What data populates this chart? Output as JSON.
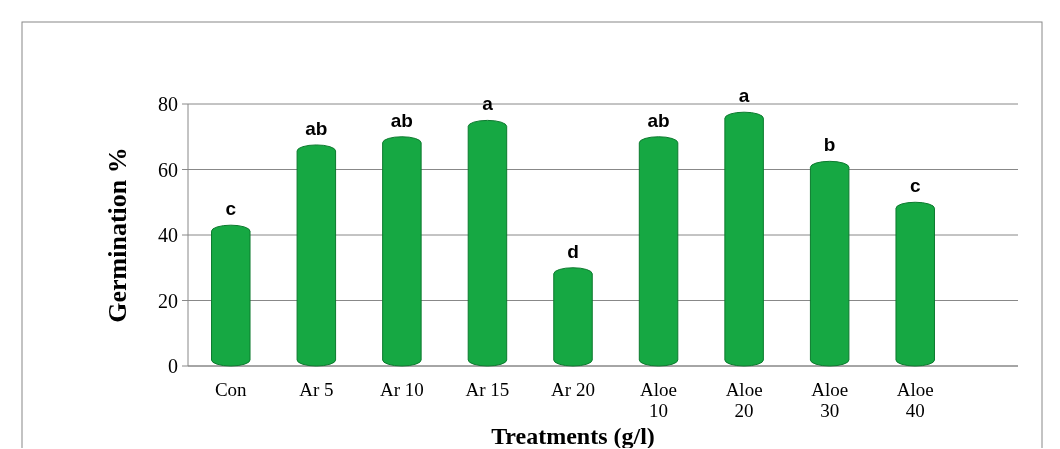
{
  "chart_data": {
    "type": "bar",
    "xlabel": "Treatments (g/l)",
    "ylabel": "Germination %",
    "categories": [
      "Con",
      "Ar 5",
      "Ar 10",
      "Ar 15",
      "Ar 20",
      "Aloe 10",
      "Aloe 20",
      "Aloe 30",
      "Aloe 40"
    ],
    "values": [
      43,
      67.5,
      70,
      75,
      30,
      70,
      77.5,
      62.5,
      50
    ],
    "color": "#16a843",
    "ylim": [
      0,
      80
    ],
    "yticks": [
      0,
      20,
      40,
      60,
      80
    ],
    "grid": "y",
    "annotations": [
      {
        "text": "c",
        "x": "Con",
        "y": 43
      },
      {
        "text": "ab",
        "x": "Ar 5",
        "y": 67.5
      },
      {
        "text": "ab",
        "x": "Ar 10",
        "y": 70
      },
      {
        "text": "a",
        "x": "Ar 15",
        "y": 75
      },
      {
        "text": "d",
        "x": "Ar 20",
        "y": 30
      },
      {
        "text": "ab",
        "x": "Aloe 10",
        "y": 70
      },
      {
        "text": "a",
        "x": "Aloe 20",
        "y": 77.5
      },
      {
        "text": "b",
        "x": "Aloe 30",
        "y": 62.5
      },
      {
        "text": "c",
        "x": "Aloe 40",
        "y": 50
      }
    ]
  }
}
